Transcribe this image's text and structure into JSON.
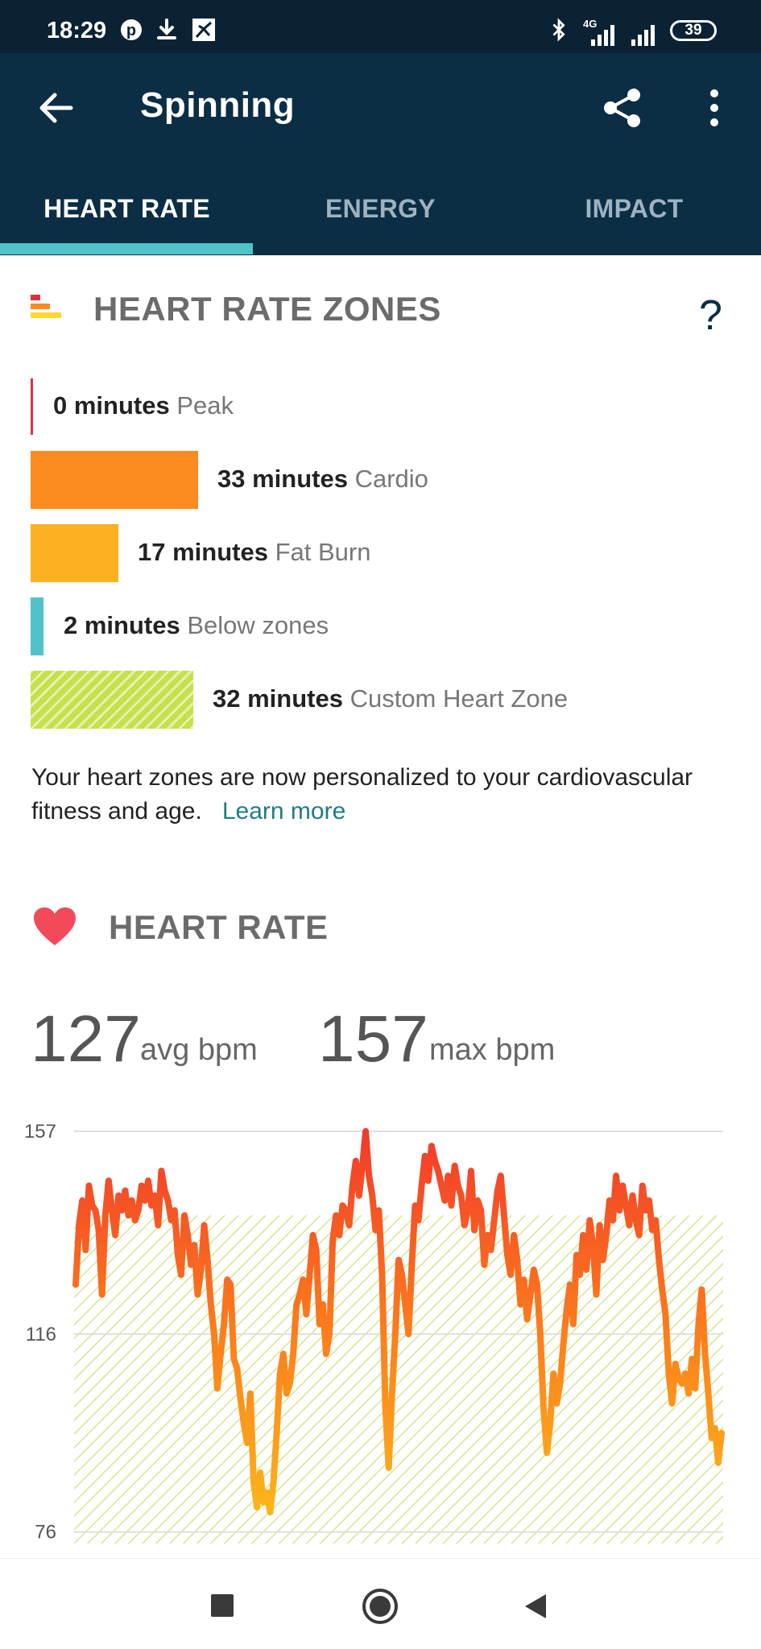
{
  "status_bar": {
    "time": "18:29",
    "battery": "39",
    "network_label": "4G"
  },
  "app_bar": {
    "title": "Spinning",
    "back_icon": "arrow-left-icon",
    "share_icon": "share-icon",
    "more_icon": "more-vertical-icon"
  },
  "tabs": [
    {
      "label": "HEART RATE",
      "active": true
    },
    {
      "label": "ENERGY",
      "active": false
    },
    {
      "label": "IMPACT",
      "active": false
    }
  ],
  "zones_section": {
    "title": "HEART RATE ZONES",
    "help": "?",
    "zones": [
      {
        "minutes": "0 minutes",
        "label": "Peak",
        "color": "#e0303f"
      },
      {
        "minutes": "33 minutes",
        "label": "Cardio",
        "color": "#fb8a1f"
      },
      {
        "minutes": "17 minutes",
        "label": "Fat Burn",
        "color": "#fdb022"
      },
      {
        "minutes": "2 minutes",
        "label": "Below zones",
        "color": "#4fc3c9"
      },
      {
        "minutes": "32 minutes",
        "label": "Custom Heart Zone",
        "color": "#c6e04b"
      }
    ],
    "note": "Your heart zones are now personalized to your cardiovascular fitness and age.",
    "learn_more": "Learn more"
  },
  "heart_rate_section": {
    "title": "HEART RATE",
    "avg_value": "127",
    "avg_unit": "avg bpm",
    "max_value": "157",
    "max_unit": "max bpm"
  },
  "chart_data": {
    "type": "line",
    "y_ticks": [
      "157",
      "116",
      "76"
    ],
    "ylim": [
      74,
      157
    ],
    "custom_zone_range": [
      83,
      140
    ],
    "y": [
      126,
      138,
      143,
      133,
      146,
      142,
      141,
      137,
      124,
      140,
      147,
      141,
      136,
      144,
      141,
      145,
      140,
      143,
      139,
      141,
      146,
      143,
      147,
      142,
      144,
      138,
      149,
      145,
      143,
      139,
      141,
      132,
      128,
      140,
      136,
      130,
      134,
      124,
      129,
      138,
      131,
      122,
      116,
      105,
      112,
      118,
      127,
      126,
      111,
      109,
      103,
      98,
      94,
      104,
      86,
      81,
      88,
      82,
      84,
      80,
      86,
      96,
      108,
      112,
      104,
      106,
      112,
      122,
      124,
      127,
      120,
      128,
      136,
      133,
      118,
      122,
      112,
      116,
      135,
      140,
      136,
      142,
      141,
      138,
      146,
      151,
      144,
      150,
      157,
      148,
      144,
      137,
      141,
      128,
      101,
      89,
      104,
      116,
      131,
      128,
      122,
      116,
      130,
      142,
      139,
      146,
      152,
      147,
      154,
      151,
      149,
      146,
      143,
      148,
      142,
      150,
      146,
      144,
      138,
      141,
      149,
      137,
      143,
      141,
      130,
      136,
      133,
      139,
      145,
      148,
      140,
      132,
      128,
      136,
      131,
      122,
      127,
      119,
      124,
      129,
      126,
      116,
      101,
      92,
      98,
      108,
      102,
      106,
      114,
      121,
      126,
      118,
      132,
      128,
      136,
      129,
      139,
      134,
      124,
      138,
      131,
      136,
      143,
      139,
      148,
      141,
      146,
      142,
      138,
      144,
      139,
      136,
      146,
      141,
      143,
      137,
      139,
      131,
      125,
      120,
      108,
      102,
      110,
      107,
      106,
      108,
      104,
      111,
      105,
      118,
      125,
      112,
      104,
      95,
      97,
      90,
      96
    ]
  },
  "nav_bar": {
    "recents_icon": "square-icon",
    "home_icon": "circle-icon",
    "back_icon": "triangle-back-icon"
  }
}
